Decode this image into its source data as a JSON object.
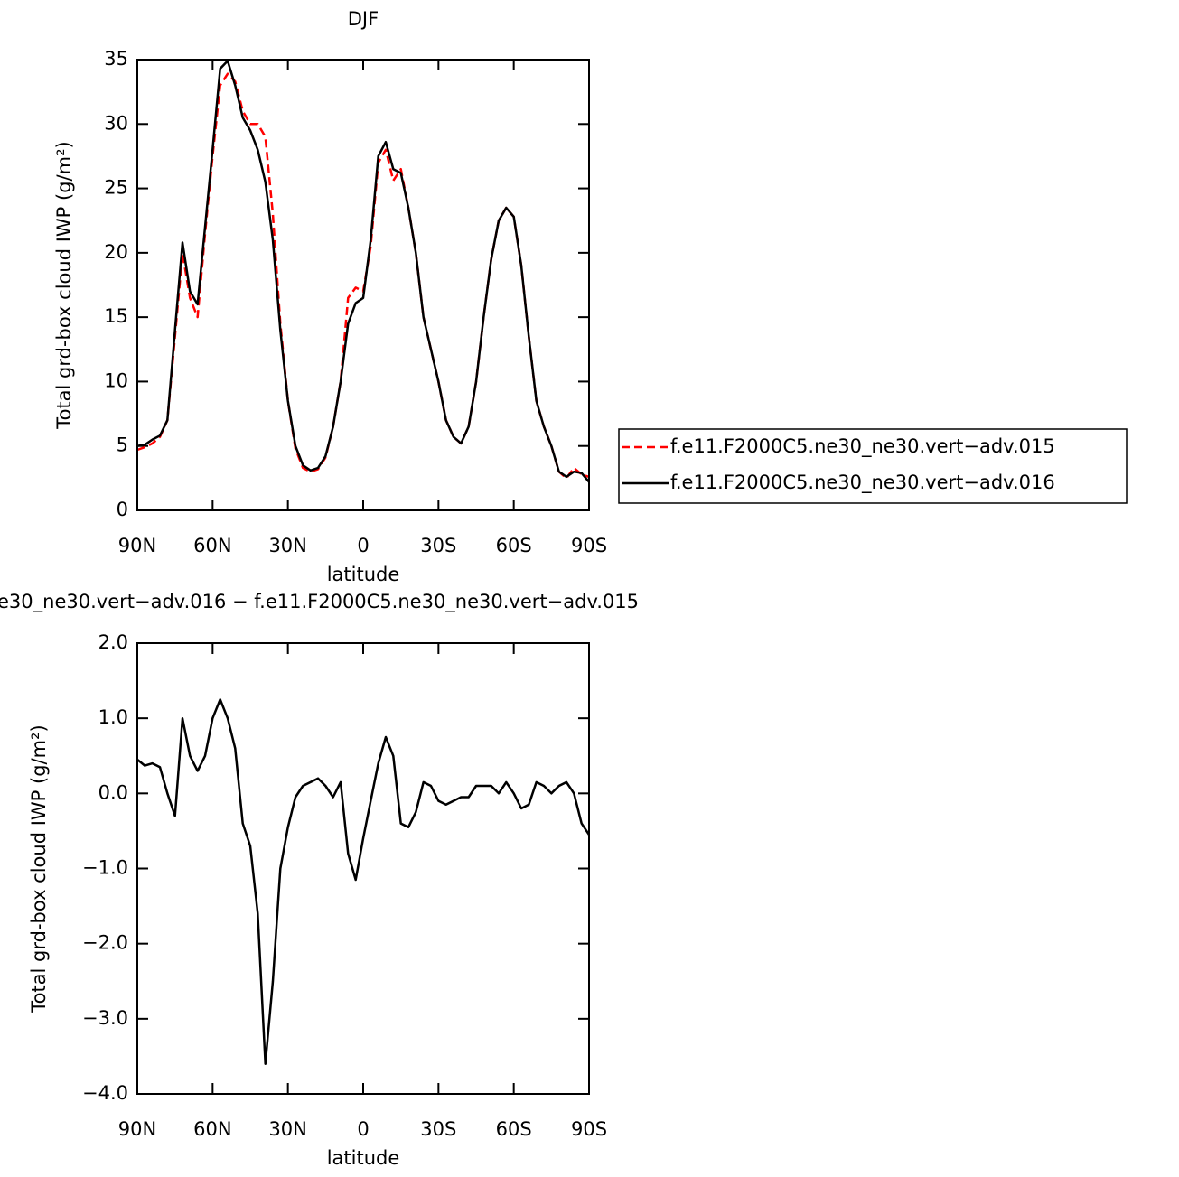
{
  "chart_data": [
    {
      "type": "line",
      "title": "DJF",
      "xlabel": "latitude",
      "ylabel": "Total grd-box cloud IWP (g/m²)",
      "xlim": [
        90,
        -90
      ],
      "xticks": [
        {
          "value": 90,
          "label": "90N"
        },
        {
          "value": 60,
          "label": "60N"
        },
        {
          "value": 30,
          "label": "30N"
        },
        0,
        {
          "value": -30,
          "label": "30S"
        },
        {
          "value": -60,
          "label": "60S"
        },
        {
          "value": -90,
          "label": "90S"
        }
      ],
      "ylim": [
        0,
        35
      ],
      "yticks": [
        0,
        5,
        10,
        15,
        20,
        25,
        30,
        35
      ],
      "legend": "right",
      "x": [
        90,
        87,
        84,
        81,
        78,
        75,
        72,
        69,
        66,
        63,
        60,
        57,
        54,
        51,
        48,
        45,
        42,
        39,
        36,
        33,
        30,
        27,
        24,
        21,
        18,
        15,
        12,
        9,
        6,
        3,
        0,
        -3,
        -6,
        -9,
        -12,
        -15,
        -18,
        -21,
        -24,
        -27,
        -30,
        -33,
        -36,
        -39,
        -42,
        -45,
        -48,
        -51,
        -54,
        -57,
        -60,
        -63,
        -66,
        -69,
        -72,
        -75,
        -78,
        -81,
        -84,
        -87,
        -90
      ],
      "series": [
        {
          "name": "f.e11.F2000C5.ne30_ne30.vert−adv.015",
          "color": "#ff0000",
          "style": "dashed",
          "values": [
            4.7,
            4.9,
            5.2,
            5.7,
            7,
            13.5,
            20,
            16.5,
            15,
            21.5,
            27.5,
            33,
            33.9,
            33.3,
            31,
            30,
            30,
            29,
            23,
            14.5,
            8.5,
            4.8,
            3.3,
            3.0,
            3.2,
            4.1,
            6.5,
            10,
            16.5,
            17.3,
            17,
            20.5,
            27,
            28,
            25.6,
            26.5,
            23.5,
            20,
            15,
            12.5,
            10,
            7,
            5.7,
            5.2,
            6.5,
            10,
            15,
            19.5,
            22.5,
            23.5,
            22.8,
            19,
            13.5,
            8.5,
            6.5,
            5,
            3,
            2.5,
            3.3,
            2.8,
            2.6
          ]
        },
        {
          "name": "f.e11.F2000C5.ne30_ne30.vert−adv.016",
          "color": "#000000",
          "style": "solid",
          "values": [
            5.0,
            5.1,
            5.5,
            5.8,
            7,
            14,
            20.8,
            17,
            16,
            22,
            28,
            34.3,
            34.9,
            33,
            30.5,
            29.5,
            28,
            25.5,
            21,
            14,
            8.5,
            5,
            3.5,
            3.1,
            3.3,
            4.2,
            6.5,
            10,
            14.5,
            16.1,
            16.5,
            21,
            27.5,
            28.6,
            26.5,
            26.2,
            23.5,
            20,
            15,
            12.5,
            10,
            7,
            5.7,
            5.2,
            6.5,
            10,
            15,
            19.5,
            22.5,
            23.5,
            22.8,
            19,
            13.5,
            8.5,
            6.5,
            5,
            3,
            2.6,
            3,
            2.9,
            2.2
          ]
        }
      ]
    },
    {
      "type": "line",
      "title": "e30_ne30.vert−adv.016 − f.e11.F2000C5.ne30_ne30.vert−adv.015",
      "xlabel": "latitude",
      "ylabel": "Total grd-box cloud IWP (g/m²)",
      "xlim": [
        90,
        -90
      ],
      "xticks": [
        {
          "value": 90,
          "label": "90N"
        },
        {
          "value": 60,
          "label": "60N"
        },
        {
          "value": 30,
          "label": "30N"
        },
        0,
        {
          "value": -30,
          "label": "30S"
        },
        {
          "value": -60,
          "label": "60S"
        },
        {
          "value": -90,
          "label": "90S"
        }
      ],
      "ylim": [
        -4,
        2
      ],
      "yticks": [
        {
          "value": 2,
          "label": "2.0"
        },
        {
          "value": 1,
          "label": "1.0"
        },
        {
          "value": 0,
          "label": "0.0"
        },
        {
          "value": -1,
          "label": "−1.0"
        },
        {
          "value": -2,
          "label": "−2.0"
        },
        {
          "value": -3,
          "label": "−3.0"
        },
        {
          "value": -4,
          "label": "−4.0"
        }
      ],
      "color": "#000000",
      "x": [
        90,
        87,
        84,
        81,
        78,
        75,
        72,
        69,
        66,
        63,
        60,
        57,
        54,
        51,
        48,
        45,
        42,
        39,
        36,
        33,
        30,
        27,
        24,
        21,
        18,
        15,
        12,
        9,
        6,
        3,
        0,
        -3,
        -6,
        -9,
        -12,
        -15,
        -18,
        -21,
        -24,
        -27,
        -30,
        -33,
        -36,
        -39,
        -42,
        -45,
        -48,
        -51,
        -54,
        -57,
        -60,
        -63,
        -66,
        -69,
        -72,
        -75,
        -78,
        -81,
        -84,
        -87,
        -90
      ],
      "values": [
        0.45,
        0.37,
        0.4,
        0.35,
        0.0,
        -0.3,
        1.0,
        0.5,
        0.3,
        0.5,
        1.0,
        1.25,
        1.0,
        0.6,
        -0.4,
        -0.7,
        -1.6,
        -3.6,
        -2.5,
        -1.0,
        -0.45,
        -0.05,
        0.1,
        0.15,
        0.2,
        0.1,
        -0.05,
        0.15,
        -0.8,
        -1.15,
        -0.6,
        -0.1,
        0.4,
        0.75,
        0.5,
        -0.4,
        -0.45,
        -0.25,
        0.15,
        0.1,
        -0.1,
        -0.15,
        -0.1,
        -0.05,
        -0.05,
        0.1,
        0.1,
        0.1,
        0.0,
        0.15,
        0.0,
        -0.2,
        -0.15,
        0.15,
        0.1,
        0.0,
        0.1,
        0.15,
        0.0,
        -0.4,
        -0.55
      ]
    }
  ]
}
